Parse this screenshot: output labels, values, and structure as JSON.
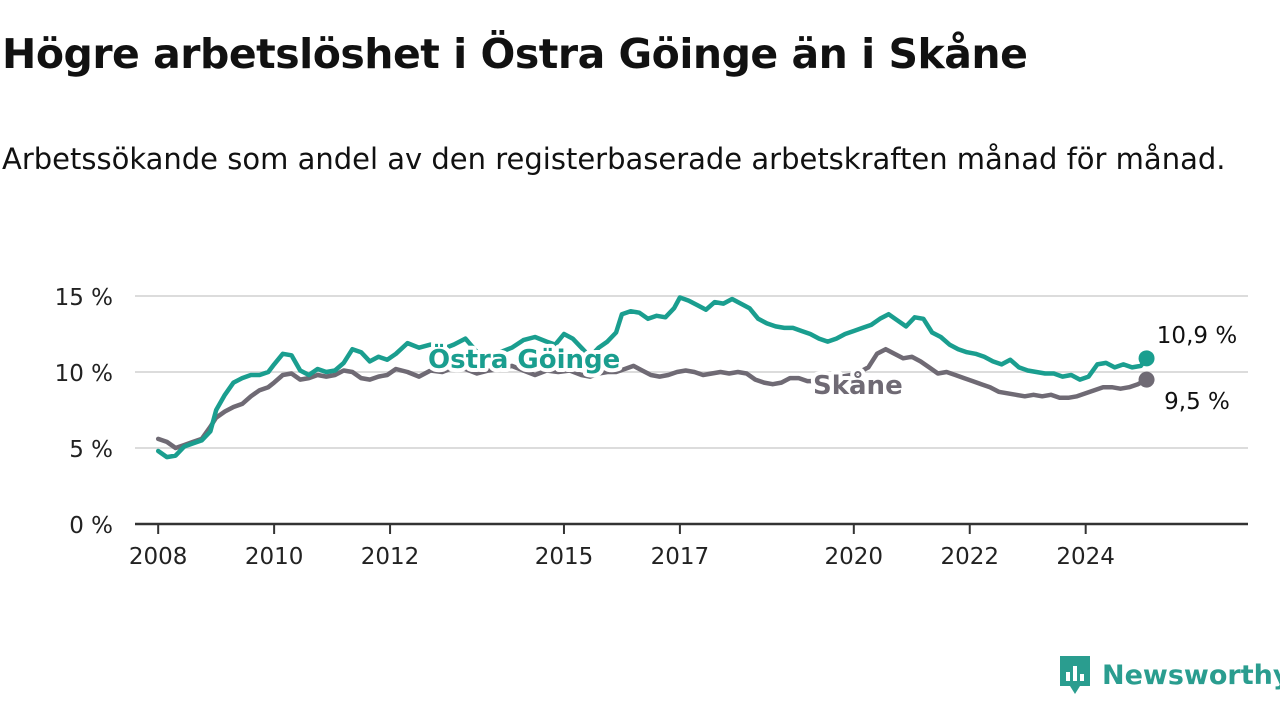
{
  "title": "Högre arbetslöshet i Östra Göinge än i Skåne",
  "subtitle": "Arbetssökande som andel av den registerbaserade arbetskraften månad för månad.",
  "brand": "Newsworthy",
  "colors": {
    "accent": "#1a9e8f",
    "gray": "#6f6a74",
    "grid": "#dcdcdc",
    "axis": "#333333",
    "brand": "#2a9d8f"
  },
  "chart_data": {
    "type": "line",
    "x_unit": "year",
    "y_unit": "%",
    "ylim": [
      0,
      15
    ],
    "xlim": [
      2007.6,
      2026.8
    ],
    "grid": true,
    "y_ticks": [
      {
        "value": 0,
        "label": "0 %"
      },
      {
        "value": 5,
        "label": "5 %"
      },
      {
        "value": 10,
        "label": "10 %"
      },
      {
        "value": 15,
        "label": "15 %"
      }
    ],
    "x_ticks": [
      {
        "value": 2008,
        "label": "2008"
      },
      {
        "value": 2010,
        "label": "2010"
      },
      {
        "value": 2012,
        "label": "2012"
      },
      {
        "value": 2015,
        "label": "2015"
      },
      {
        "value": 2017,
        "label": "2017"
      },
      {
        "value": 2020,
        "label": "2020"
      },
      {
        "value": 2022,
        "label": "2022"
      },
      {
        "value": 2024,
        "label": "2024"
      }
    ],
    "series": [
      {
        "name": "Östra Göinge",
        "color": "#1a9e8f",
        "end_label": "10,9 %",
        "points": [
          [
            2008.0,
            4.8
          ],
          [
            2008.15,
            4.4
          ],
          [
            2008.3,
            4.5
          ],
          [
            2008.45,
            5.1
          ],
          [
            2008.6,
            5.3
          ],
          [
            2008.75,
            5.5
          ],
          [
            2008.9,
            6.1
          ],
          [
            2009.0,
            7.5
          ],
          [
            2009.15,
            8.5
          ],
          [
            2009.3,
            9.3
          ],
          [
            2009.45,
            9.6
          ],
          [
            2009.6,
            9.8
          ],
          [
            2009.75,
            9.8
          ],
          [
            2009.9,
            10.0
          ],
          [
            2010.0,
            10.5
          ],
          [
            2010.15,
            11.2
          ],
          [
            2010.3,
            11.1
          ],
          [
            2010.45,
            10.1
          ],
          [
            2010.6,
            9.8
          ],
          [
            2010.75,
            10.2
          ],
          [
            2010.9,
            10.0
          ],
          [
            2011.05,
            10.1
          ],
          [
            2011.2,
            10.6
          ],
          [
            2011.35,
            11.5
          ],
          [
            2011.5,
            11.3
          ],
          [
            2011.65,
            10.7
          ],
          [
            2011.8,
            11.0
          ],
          [
            2011.95,
            10.8
          ],
          [
            2012.1,
            11.2
          ],
          [
            2012.3,
            11.9
          ],
          [
            2012.5,
            11.6
          ],
          [
            2012.7,
            11.8
          ],
          [
            2012.9,
            11.5
          ],
          [
            2013.1,
            11.8
          ],
          [
            2013.3,
            12.2
          ],
          [
            2013.5,
            11.3
          ],
          [
            2013.7,
            11.0
          ],
          [
            2013.9,
            11.3
          ],
          [
            2014.1,
            11.6
          ],
          [
            2014.3,
            12.1
          ],
          [
            2014.5,
            12.3
          ],
          [
            2014.7,
            12.0
          ],
          [
            2014.85,
            11.8
          ],
          [
            2015.0,
            12.5
          ],
          [
            2015.15,
            12.2
          ],
          [
            2015.3,
            11.6
          ],
          [
            2015.45,
            11.0
          ],
          [
            2015.6,
            11.6
          ],
          [
            2015.75,
            12.0
          ],
          [
            2015.9,
            12.6
          ],
          [
            2016.0,
            13.8
          ],
          [
            2016.15,
            14.0
          ],
          [
            2016.3,
            13.9
          ],
          [
            2016.45,
            13.5
          ],
          [
            2016.6,
            13.7
          ],
          [
            2016.75,
            13.6
          ],
          [
            2016.9,
            14.2
          ],
          [
            2017.0,
            14.9
          ],
          [
            2017.15,
            14.7
          ],
          [
            2017.3,
            14.4
          ],
          [
            2017.45,
            14.1
          ],
          [
            2017.6,
            14.6
          ],
          [
            2017.75,
            14.5
          ],
          [
            2017.9,
            14.8
          ],
          [
            2018.05,
            14.5
          ],
          [
            2018.2,
            14.2
          ],
          [
            2018.35,
            13.5
          ],
          [
            2018.5,
            13.2
          ],
          [
            2018.65,
            13.0
          ],
          [
            2018.8,
            12.9
          ],
          [
            2018.95,
            12.9
          ],
          [
            2019.1,
            12.7
          ],
          [
            2019.25,
            12.5
          ],
          [
            2019.4,
            12.2
          ],
          [
            2019.55,
            12.0
          ],
          [
            2019.7,
            12.2
          ],
          [
            2019.85,
            12.5
          ],
          [
            2020.0,
            12.7
          ],
          [
            2020.15,
            12.9
          ],
          [
            2020.3,
            13.1
          ],
          [
            2020.45,
            13.5
          ],
          [
            2020.6,
            13.8
          ],
          [
            2020.75,
            13.4
          ],
          [
            2020.9,
            13.0
          ],
          [
            2021.05,
            13.6
          ],
          [
            2021.2,
            13.5
          ],
          [
            2021.35,
            12.6
          ],
          [
            2021.5,
            12.3
          ],
          [
            2021.65,
            11.8
          ],
          [
            2021.8,
            11.5
          ],
          [
            2021.95,
            11.3
          ],
          [
            2022.1,
            11.2
          ],
          [
            2022.25,
            11.0
          ],
          [
            2022.4,
            10.7
          ],
          [
            2022.55,
            10.5
          ],
          [
            2022.7,
            10.8
          ],
          [
            2022.85,
            10.3
          ],
          [
            2023.0,
            10.1
          ],
          [
            2023.15,
            10.0
          ],
          [
            2023.3,
            9.9
          ],
          [
            2023.45,
            9.9
          ],
          [
            2023.6,
            9.7
          ],
          [
            2023.75,
            9.8
          ],
          [
            2023.9,
            9.5
          ],
          [
            2024.05,
            9.7
          ],
          [
            2024.2,
            10.5
          ],
          [
            2024.35,
            10.6
          ],
          [
            2024.5,
            10.3
          ],
          [
            2024.65,
            10.5
          ],
          [
            2024.8,
            10.3
          ],
          [
            2024.95,
            10.4
          ],
          [
            2025.05,
            10.9
          ]
        ]
      },
      {
        "name": "Skåne",
        "color": "#6f6a74",
        "end_label": "9,5 %",
        "points": [
          [
            2008.0,
            5.6
          ],
          [
            2008.15,
            5.4
          ],
          [
            2008.3,
            5.0
          ],
          [
            2008.45,
            5.2
          ],
          [
            2008.6,
            5.4
          ],
          [
            2008.75,
            5.6
          ],
          [
            2008.9,
            6.4
          ],
          [
            2009.0,
            7.0
          ],
          [
            2009.15,
            7.4
          ],
          [
            2009.3,
            7.7
          ],
          [
            2009.45,
            7.9
          ],
          [
            2009.6,
            8.4
          ],
          [
            2009.75,
            8.8
          ],
          [
            2009.9,
            9.0
          ],
          [
            2010.0,
            9.3
          ],
          [
            2010.15,
            9.8
          ],
          [
            2010.3,
            9.9
          ],
          [
            2010.45,
            9.5
          ],
          [
            2010.6,
            9.6
          ],
          [
            2010.75,
            9.8
          ],
          [
            2010.9,
            9.7
          ],
          [
            2011.05,
            9.8
          ],
          [
            2011.2,
            10.1
          ],
          [
            2011.35,
            10.0
          ],
          [
            2011.5,
            9.6
          ],
          [
            2011.65,
            9.5
          ],
          [
            2011.8,
            9.7
          ],
          [
            2011.95,
            9.8
          ],
          [
            2012.1,
            10.2
          ],
          [
            2012.3,
            10.0
          ],
          [
            2012.5,
            9.7
          ],
          [
            2012.7,
            10.1
          ],
          [
            2012.9,
            10.0
          ],
          [
            2013.1,
            10.3
          ],
          [
            2013.3,
            10.2
          ],
          [
            2013.5,
            9.9
          ],
          [
            2013.7,
            10.1
          ],
          [
            2013.9,
            10.2
          ],
          [
            2014.1,
            10.4
          ],
          [
            2014.3,
            10.1
          ],
          [
            2014.5,
            9.8
          ],
          [
            2014.7,
            10.1
          ],
          [
            2014.9,
            10.0
          ],
          [
            2015.1,
            10.1
          ],
          [
            2015.3,
            9.8
          ],
          [
            2015.45,
            9.7
          ],
          [
            2015.6,
            9.9
          ],
          [
            2015.75,
            10.0
          ],
          [
            2015.9,
            10.0
          ],
          [
            2016.05,
            10.2
          ],
          [
            2016.2,
            10.4
          ],
          [
            2016.35,
            10.1
          ],
          [
            2016.5,
            9.8
          ],
          [
            2016.65,
            9.7
          ],
          [
            2016.8,
            9.8
          ],
          [
            2016.95,
            10.0
          ],
          [
            2017.1,
            10.1
          ],
          [
            2017.25,
            10.0
          ],
          [
            2017.4,
            9.8
          ],
          [
            2017.55,
            9.9
          ],
          [
            2017.7,
            10.0
          ],
          [
            2017.85,
            9.9
          ],
          [
            2018.0,
            10.0
          ],
          [
            2018.15,
            9.9
          ],
          [
            2018.3,
            9.5
          ],
          [
            2018.45,
            9.3
          ],
          [
            2018.6,
            9.2
          ],
          [
            2018.75,
            9.3
          ],
          [
            2018.9,
            9.6
          ],
          [
            2019.05,
            9.6
          ],
          [
            2019.2,
            9.4
          ],
          [
            2019.35,
            9.4
          ],
          [
            2019.5,
            9.6
          ],
          [
            2019.65,
            9.8
          ],
          [
            2019.8,
            9.7
          ],
          [
            2019.95,
            9.8
          ],
          [
            2020.1,
            10.0
          ],
          [
            2020.25,
            10.3
          ],
          [
            2020.4,
            11.2
          ],
          [
            2020.55,
            11.5
          ],
          [
            2020.7,
            11.2
          ],
          [
            2020.85,
            10.9
          ],
          [
            2021.0,
            11.0
          ],
          [
            2021.15,
            10.7
          ],
          [
            2021.3,
            10.3
          ],
          [
            2021.45,
            9.9
          ],
          [
            2021.6,
            10.0
          ],
          [
            2021.75,
            9.8
          ],
          [
            2021.9,
            9.6
          ],
          [
            2022.05,
            9.4
          ],
          [
            2022.2,
            9.2
          ],
          [
            2022.35,
            9.0
          ],
          [
            2022.5,
            8.7
          ],
          [
            2022.65,
            8.6
          ],
          [
            2022.8,
            8.5
          ],
          [
            2022.95,
            8.4
          ],
          [
            2023.1,
            8.5
          ],
          [
            2023.25,
            8.4
          ],
          [
            2023.4,
            8.5
          ],
          [
            2023.55,
            8.3
          ],
          [
            2023.7,
            8.3
          ],
          [
            2023.85,
            8.4
          ],
          [
            2024.0,
            8.6
          ],
          [
            2024.15,
            8.8
          ],
          [
            2024.3,
            9.0
          ],
          [
            2024.45,
            9.0
          ],
          [
            2024.6,
            8.9
          ],
          [
            2024.75,
            9.0
          ],
          [
            2024.9,
            9.2
          ],
          [
            2025.05,
            9.5
          ]
        ]
      }
    ]
  }
}
